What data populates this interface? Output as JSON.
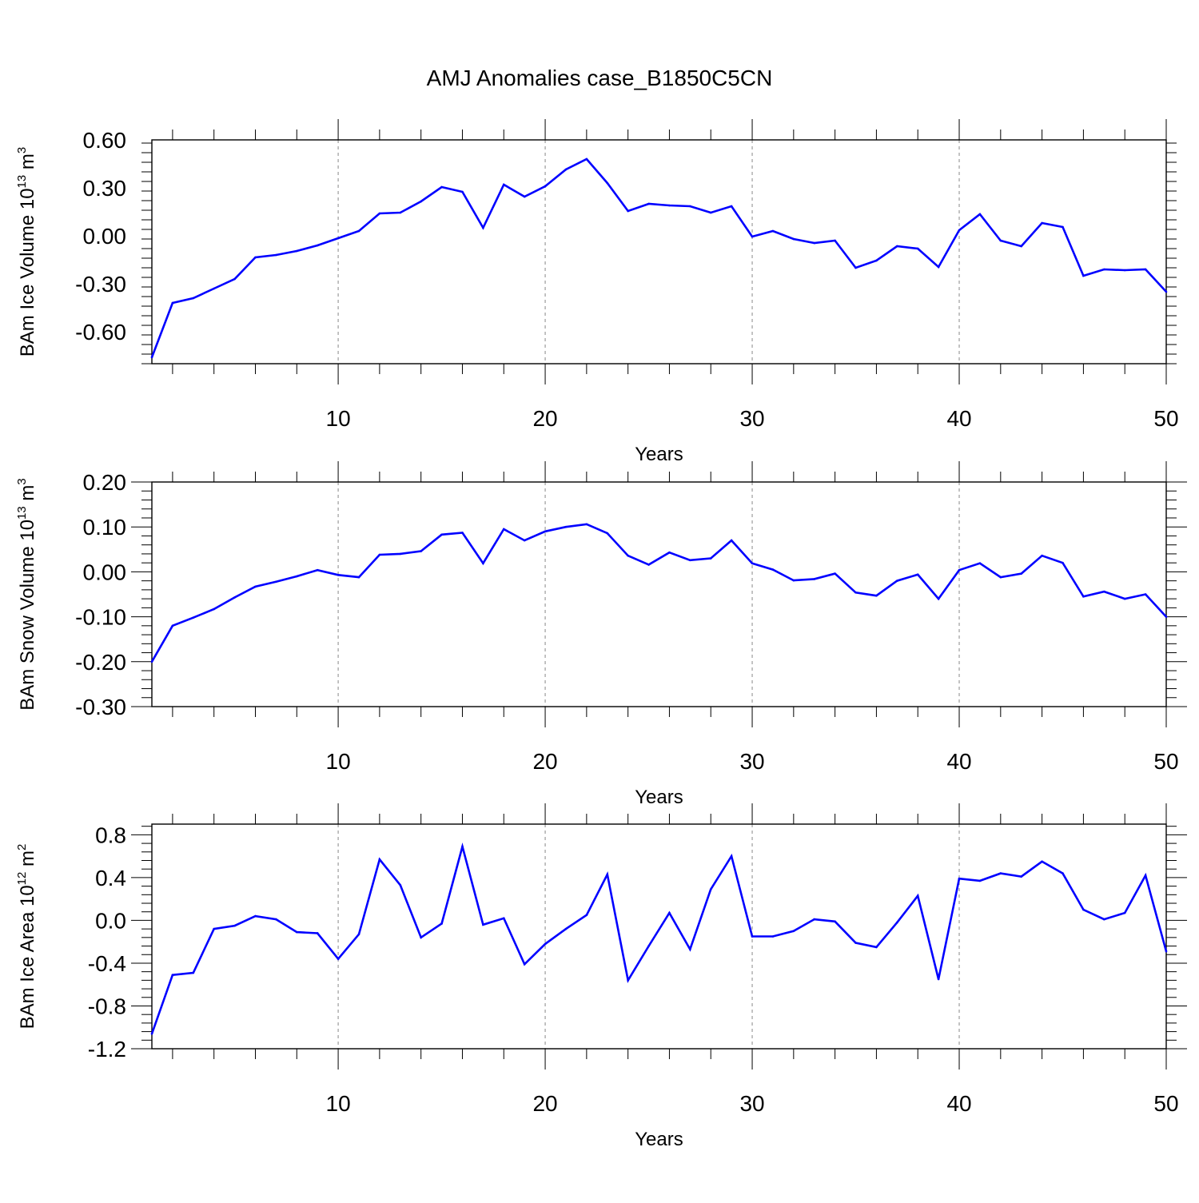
{
  "figure": {
    "title": "AMJ Anomalies case_B1850C5CN"
  },
  "chart_data": [
    {
      "type": "line",
      "ylabel": {
        "text": "BAm Ice Volume 10",
        "exp": "13",
        "unit": " m",
        "unit_exp": "3"
      },
      "xlabel": "Years",
      "xlim": [
        1,
        50
      ],
      "ylim": [
        -0.8,
        0.6
      ],
      "yticks": [
        0.6,
        0.3,
        0.0,
        -0.3,
        -0.6
      ],
      "ytick_labels": [
        "0.60",
        "0.30",
        "0.00",
        "-0.30",
        "-0.60"
      ],
      "xticks": [
        10,
        20,
        30,
        40,
        50
      ],
      "xtick_labels": [
        "10",
        "20",
        "30",
        "40",
        "50"
      ],
      "grid": "x-dashed",
      "line_color": "#0000ff",
      "x": [
        1,
        2,
        3,
        4,
        5,
        6,
        7,
        8,
        9,
        10,
        11,
        12,
        13,
        14,
        15,
        16,
        17,
        18,
        19,
        20,
        21,
        22,
        23,
        24,
        25,
        26,
        27,
        28,
        29,
        30,
        31,
        32,
        33,
        34,
        35,
        36,
        37,
        38,
        39,
        40,
        41,
        42,
        43,
        44,
        45,
        46,
        47,
        48,
        49,
        50
      ],
      "values": [
        -0.76,
        -0.42,
        -0.39,
        -0.33,
        -0.27,
        -0.135,
        -0.12,
        -0.095,
        -0.06,
        -0.015,
        0.03,
        0.14,
        0.145,
        0.215,
        0.305,
        0.275,
        0.05,
        0.32,
        0.245,
        0.31,
        0.415,
        0.48,
        0.33,
        0.155,
        0.2,
        0.19,
        0.185,
        0.145,
        0.185,
        -0.005,
        0.03,
        -0.02,
        -0.045,
        -0.03,
        -0.2,
        -0.155,
        -0.065,
        -0.08,
        -0.195,
        0.035,
        0.135,
        -0.03,
        -0.065,
        0.08,
        0.055,
        -0.25,
        -0.21,
        -0.215,
        -0.21,
        -0.35
      ]
    },
    {
      "type": "line",
      "ylabel": {
        "text": "BAm Snow Volume 10",
        "exp": "13",
        "unit": " m",
        "unit_exp": "3"
      },
      "xlabel": "Years",
      "xlim": [
        1,
        50
      ],
      "ylim": [
        -0.3,
        0.2
      ],
      "yticks": [
        0.2,
        0.1,
        0.0,
        -0.1,
        -0.2,
        -0.3
      ],
      "ytick_labels": [
        "0.20",
        "0.10",
        "0.00",
        "-0.10",
        "-0.20",
        "-0.30"
      ],
      "xticks": [
        10,
        20,
        30,
        40,
        50
      ],
      "xtick_labels": [
        "10",
        "20",
        "30",
        "40",
        "50"
      ],
      "grid": "x-dashed",
      "line_color": "#0000ff",
      "x": [
        1,
        2,
        3,
        4,
        5,
        6,
        7,
        8,
        9,
        10,
        11,
        12,
        13,
        14,
        15,
        16,
        17,
        18,
        19,
        20,
        21,
        22,
        23,
        24,
        25,
        26,
        27,
        28,
        29,
        30,
        31,
        32,
        33,
        34,
        35,
        36,
        37,
        38,
        39,
        40,
        41,
        42,
        43,
        44,
        45,
        46,
        47,
        48,
        49,
        50
      ],
      "values": [
        -0.2,
        -0.12,
        -0.102,
        -0.083,
        -0.057,
        -0.033,
        -0.022,
        -0.01,
        0.004,
        -0.007,
        -0.012,
        0.038,
        0.04,
        0.046,
        0.083,
        0.087,
        0.019,
        0.095,
        0.07,
        0.09,
        0.1,
        0.106,
        0.086,
        0.036,
        0.016,
        0.043,
        0.026,
        0.03,
        0.07,
        0.019,
        0.005,
        -0.019,
        -0.016,
        -0.004,
        -0.046,
        -0.053,
        -0.02,
        -0.006,
        -0.06,
        0.004,
        0.019,
        -0.012,
        -0.004,
        0.036,
        0.02,
        -0.055,
        -0.044,
        -0.06,
        -0.05,
        -0.1
      ]
    },
    {
      "type": "line",
      "ylabel": {
        "text": "BAm Ice Area 10",
        "exp": "12",
        "unit": " m",
        "unit_exp": "2"
      },
      "xlabel": "Years",
      "xlim": [
        1,
        50
      ],
      "ylim": [
        -1.2,
        0.9
      ],
      "yticks": [
        0.8,
        0.4,
        0.0,
        -0.4,
        -0.8,
        -1.2
      ],
      "ytick_labels": [
        "0.8",
        "0.4",
        "0.0",
        "-0.4",
        "-0.8",
        "-1.2"
      ],
      "xticks": [
        10,
        20,
        30,
        40,
        50
      ],
      "xtick_labels": [
        "10",
        "20",
        "30",
        "40",
        "50"
      ],
      "grid": "x-dashed",
      "line_color": "#0000ff",
      "x": [
        1,
        2,
        3,
        4,
        5,
        6,
        7,
        8,
        9,
        10,
        11,
        12,
        13,
        14,
        15,
        16,
        17,
        18,
        19,
        20,
        21,
        22,
        23,
        24,
        25,
        26,
        27,
        28,
        29,
        30,
        31,
        32,
        33,
        34,
        35,
        36,
        37,
        38,
        39,
        40,
        41,
        42,
        43,
        44,
        45,
        46,
        47,
        48,
        49,
        50
      ],
      "values": [
        -1.06,
        -0.51,
        -0.49,
        -0.08,
        -0.05,
        0.04,
        0.01,
        -0.11,
        -0.12,
        -0.36,
        -0.13,
        0.57,
        0.33,
        -0.16,
        -0.03,
        0.69,
        -0.04,
        0.02,
        -0.41,
        -0.22,
        -0.08,
        0.05,
        0.43,
        -0.56,
        -0.24,
        0.07,
        -0.27,
        0.29,
        0.6,
        -0.15,
        -0.15,
        -0.1,
        0.01,
        -0.01,
        -0.21,
        -0.25,
        -0.02,
        0.23,
        -0.55,
        0.39,
        0.37,
        0.44,
        0.41,
        0.55,
        0.44,
        0.1,
        0.01,
        0.07,
        0.42,
        -0.29
      ]
    }
  ]
}
